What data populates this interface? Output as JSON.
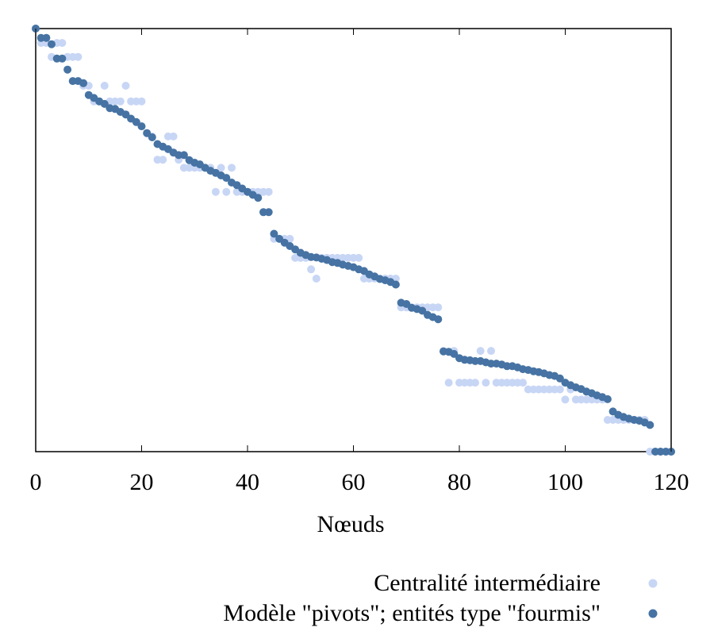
{
  "chart_data": {
    "type": "scatter",
    "xlabel": "Nœuds",
    "ylabel": "",
    "xlim": [
      0,
      120
    ],
    "ylim": [
      0,
      100
    ],
    "x_ticks": [
      "0",
      "20",
      "40",
      "60",
      "80",
      "100",
      "120"
    ],
    "grid": false,
    "legend_position": "bottom-right",
    "series": [
      {
        "name": "Centralité intermédiaire",
        "color": "#c8d6f5",
        "x": [
          0,
          1,
          2,
          3,
          4,
          5,
          6,
          7,
          8,
          9,
          10,
          11,
          12,
          13,
          14,
          15,
          16,
          17,
          18,
          19,
          20,
          21,
          22,
          23,
          24,
          25,
          26,
          27,
          28,
          29,
          30,
          31,
          32,
          33,
          34,
          35,
          36,
          37,
          38,
          39,
          40,
          41,
          42,
          43,
          44,
          45,
          46,
          47,
          48,
          49,
          50,
          51,
          52,
          53,
          54,
          55,
          56,
          57,
          58,
          59,
          60,
          61,
          62,
          63,
          64,
          65,
          66,
          67,
          68,
          69,
          70,
          71,
          72,
          73,
          74,
          75,
          76,
          77,
          78,
          79,
          80,
          81,
          82,
          83,
          84,
          85,
          86,
          87,
          88,
          89,
          90,
          91,
          92,
          93,
          94,
          95,
          96,
          97,
          98,
          99,
          100,
          101,
          102,
          103,
          104,
          105,
          106,
          107,
          108,
          109,
          110,
          111,
          112,
          113,
          114,
          115,
          116,
          117,
          118,
          119,
          120
        ],
        "values": [
          100,
          96.6,
          96.6,
          93.3,
          96.6,
          96.6,
          93.3,
          93.3,
          93.3,
          86.5,
          86.5,
          82.8,
          82.8,
          86.5,
          82.8,
          82.8,
          82.8,
          86.5,
          82.8,
          82.8,
          82.8,
          75.3,
          74.5,
          69.0,
          69.0,
          74.5,
          74.5,
          69.0,
          67.1,
          67.1,
          67.1,
          67.1,
          67.1,
          67.1,
          61.4,
          67.1,
          61.4,
          67.1,
          61.4,
          61.4,
          61.4,
          61.4,
          61.4,
          61.4,
          61.4,
          50.3,
          50.3,
          50.3,
          50.3,
          45.8,
          45.8,
          45.8,
          43.1,
          40.9,
          45.8,
          45.8,
          45.8,
          45.8,
          45.8,
          45.8,
          45.8,
          45.8,
          40.9,
          40.9,
          40.9,
          40.9,
          40.9,
          40.9,
          40.9,
          34.1,
          34.1,
          34.1,
          34.1,
          34.1,
          34.1,
          34.1,
          34.1,
          23.8,
          16.3,
          23.8,
          16.3,
          16.3,
          16.3,
          16.3,
          23.8,
          16.3,
          23.8,
          16.3,
          16.3,
          16.3,
          16.3,
          16.3,
          16.3,
          14.7,
          14.7,
          14.7,
          14.7,
          14.7,
          14.7,
          14.7,
          12.3,
          14.7,
          12.3,
          12.3,
          12.3,
          12.3,
          12.3,
          12.3,
          7.5,
          7.5,
          7.5,
          7.5,
          7.5,
          7.5,
          7.5,
          7.5,
          0,
          0,
          0,
          0,
          0
        ]
      },
      {
        "name": "Modèle \"pivots\"; entités type \"fourmis\"",
        "color": "#4673a3",
        "x": [
          0,
          1,
          2,
          3,
          4,
          5,
          6,
          7,
          8,
          9,
          10,
          11,
          12,
          13,
          14,
          15,
          16,
          17,
          18,
          19,
          20,
          21,
          22,
          23,
          24,
          25,
          26,
          27,
          28,
          29,
          30,
          31,
          32,
          33,
          34,
          35,
          36,
          37,
          38,
          39,
          40,
          41,
          42,
          43,
          44,
          45,
          46,
          47,
          48,
          49,
          50,
          51,
          52,
          53,
          54,
          55,
          56,
          57,
          58,
          59,
          60,
          61,
          62,
          63,
          64,
          65,
          66,
          67,
          68,
          69,
          70,
          71,
          72,
          73,
          74,
          75,
          76,
          77,
          78,
          79,
          80,
          81,
          82,
          83,
          84,
          85,
          86,
          87,
          88,
          89,
          90,
          91,
          92,
          93,
          94,
          95,
          96,
          97,
          98,
          99,
          100,
          101,
          102,
          103,
          104,
          105,
          106,
          107,
          108,
          109,
          110,
          111,
          112,
          113,
          114,
          115,
          116,
          117,
          118,
          119,
          120
        ],
        "values": [
          100,
          97.8,
          97.8,
          96.3,
          92.9,
          92.9,
          90.3,
          87.6,
          87.6,
          87.1,
          84.3,
          83.6,
          82.8,
          82.2,
          81.2,
          81.0,
          80.3,
          79.7,
          78.7,
          77.9,
          76.9,
          75.3,
          74.3,
          72.7,
          72.1,
          71.5,
          70.7,
          70.1,
          70.1,
          68.9,
          68.3,
          67.9,
          67.1,
          66.4,
          65.9,
          65.3,
          64.7,
          63.6,
          63.0,
          62.2,
          61.4,
          60.7,
          60.0,
          56.6,
          56.6,
          51.5,
          50.3,
          49.4,
          48.6,
          47.8,
          47.0,
          46.5,
          46.0,
          45.9,
          45.6,
          45.3,
          44.8,
          44.6,
          44.2,
          43.9,
          43.6,
          43.1,
          42.7,
          41.9,
          41.4,
          40.8,
          40.5,
          40.1,
          39.5,
          35.2,
          34.9,
          34.0,
          33.7,
          33.3,
          32.3,
          31.8,
          31.3,
          23.7,
          23.6,
          23.1,
          22.1,
          21.7,
          21.6,
          21.4,
          21.4,
          21.1,
          20.8,
          20.8,
          20.6,
          20.2,
          20.2,
          19.9,
          19.5,
          19.3,
          19.0,
          18.8,
          18.5,
          18.1,
          17.9,
          17.3,
          16.3,
          15.7,
          15.2,
          14.8,
          14.2,
          13.8,
          13.3,
          12.9,
          12.4,
          9.5,
          8.7,
          8.2,
          7.8,
          7.5,
          7.3,
          6.9,
          6.3,
          0,
          0,
          0,
          0
        ]
      }
    ]
  }
}
